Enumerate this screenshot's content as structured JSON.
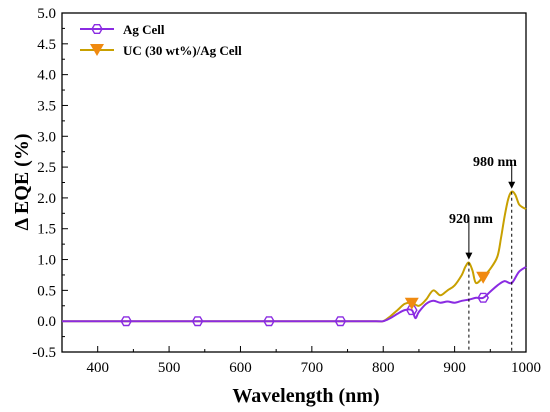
{
  "chart_data": {
    "type": "line",
    "title": "",
    "xlabel": "Wavelength (nm)",
    "ylabel": "Δ EQE (%)",
    "xlim": [
      350,
      1000
    ],
    "ylim": [
      -0.5,
      5.0
    ],
    "xticks": [
      "400",
      "500",
      "600",
      "700",
      "800",
      "900",
      "1000"
    ],
    "xtick_values": [
      400,
      500,
      600,
      700,
      800,
      900,
      1000
    ],
    "yticks": [
      "-0.5",
      "0.0",
      "0.5",
      "1.0",
      "1.5",
      "2.0",
      "2.5",
      "3.0",
      "3.5",
      "4.0",
      "4.5",
      "5.0"
    ],
    "ytick_values": [
      -0.5,
      0.0,
      0.5,
      1.0,
      1.5,
      2.0,
      2.5,
      3.0,
      3.5,
      4.0,
      4.5,
      5.0
    ],
    "legend_position": "top-left",
    "grid": false,
    "series": [
      {
        "name": "Ag Cell",
        "color": "#8a2be2",
        "marker": "hexagon-open",
        "x": [
          350,
          440,
          540,
          640,
          740,
          790,
          800,
          810,
          820,
          830,
          840,
          845,
          850,
          860,
          870,
          880,
          890,
          900,
          910,
          920,
          930,
          940,
          950,
          960,
          970,
          980,
          990,
          1000
        ],
        "y": [
          0.0,
          0.0,
          0.0,
          0.0,
          0.0,
          0.0,
          0.0,
          0.05,
          0.12,
          0.18,
          0.18,
          0.05,
          0.15,
          0.28,
          0.33,
          0.3,
          0.32,
          0.3,
          0.33,
          0.35,
          0.38,
          0.38,
          0.48,
          0.58,
          0.65,
          0.62,
          0.8,
          0.88
        ],
        "marker_x": [
          440,
          540,
          640,
          740,
          840,
          940
        ]
      },
      {
        "name": "UC (30 wt%)/Ag Cell",
        "color": "#c8a000",
        "marker_color": "#f08a10",
        "marker": "triangle-down",
        "x": [
          350,
          440,
          540,
          640,
          740,
          790,
          800,
          810,
          820,
          830,
          840,
          850,
          860,
          870,
          880,
          890,
          900,
          910,
          915,
          920,
          925,
          930,
          940,
          950,
          960,
          965,
          970,
          975,
          980,
          985,
          990,
          995,
          1000
        ],
        "y": [
          0.0,
          0.0,
          0.0,
          0.0,
          0.0,
          0.0,
          0.0,
          0.08,
          0.18,
          0.28,
          0.3,
          0.25,
          0.35,
          0.5,
          0.42,
          0.5,
          0.58,
          0.75,
          0.88,
          0.95,
          0.82,
          0.62,
          0.72,
          0.85,
          1.05,
          1.35,
          1.7,
          1.98,
          2.1,
          2.05,
          1.9,
          1.85,
          1.82
        ],
        "marker_x": [
          840,
          940
        ]
      }
    ],
    "annotations": [
      {
        "text": "920 nm",
        "x": 920,
        "y": 0.95,
        "label_y": 1.65
      },
      {
        "text": "980 nm",
        "x": 980,
        "y": 2.1,
        "label_y": 2.55
      }
    ]
  }
}
